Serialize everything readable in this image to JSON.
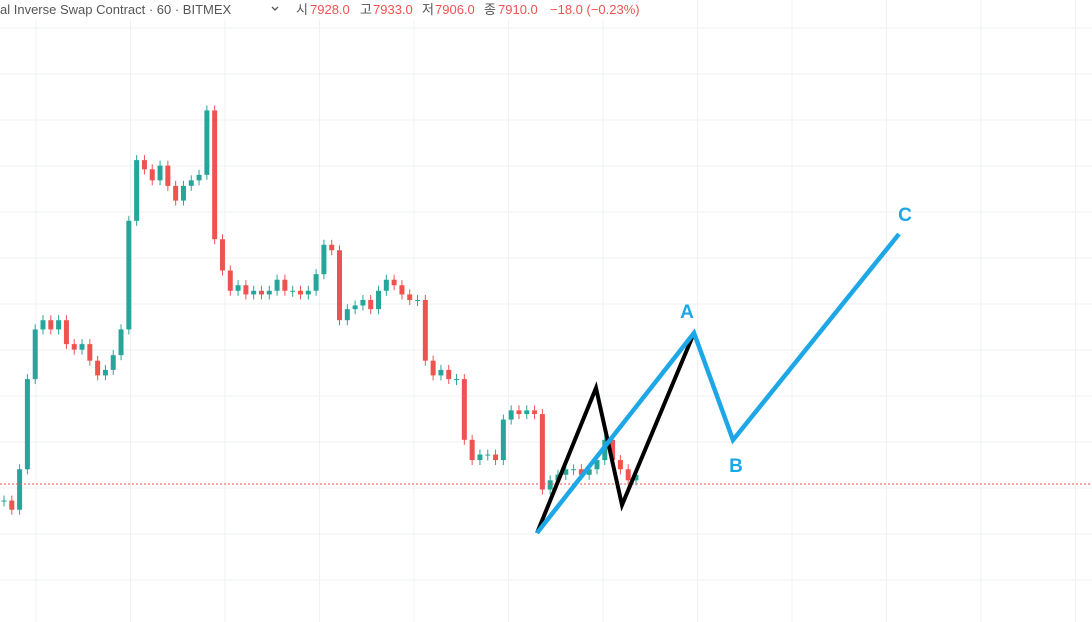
{
  "header": {
    "symbol": "al Inverse Swap Contract · 60 · BITMEX",
    "open_label": "시",
    "open": "7928.0",
    "high_label": "고",
    "high": "7933.0",
    "low_label": "저",
    "low": "7906.0",
    "close_label": "종",
    "close": "7910.0",
    "change": "−18.0 (−0.23%)"
  },
  "annotations": {
    "a": "A",
    "b": "B",
    "c": "C"
  },
  "chart_data": {
    "type": "candlestick",
    "values": [
      7901,
      7896,
      7918,
      7967,
      7994,
      7999,
      7994,
      7999,
      7986,
      7983,
      7986,
      7977,
      7969,
      7972,
      7980,
      7994,
      8053,
      8086,
      8081,
      8075,
      8083,
      8072,
      8064,
      8072,
      8075,
      8078,
      8113,
      8043,
      8026,
      8015,
      8018,
      8013,
      8015,
      8013,
      8015,
      8021,
      8015,
      8015,
      8013,
      8015,
      8024,
      8040,
      8037,
      7999,
      8005,
      8007,
      8010,
      8005,
      8015,
      8021,
      8018,
      8013,
      8010,
      8010,
      7977,
      7969,
      7972,
      7967,
      7967,
      7934,
      7923,
      7926,
      7926,
      7923,
      7945,
      7950,
      7948,
      7950,
      7948,
      7907,
      7912,
      7915,
      7918,
      7918,
      7915,
      7918,
      7923,
      7934,
      7923,
      7918,
      7912,
      7915
    ],
    "up_color": "#26a69a",
    "down_color": "#ef5350",
    "last_price": 7910,
    "ylim": [
      7835,
      8173
    ]
  }
}
